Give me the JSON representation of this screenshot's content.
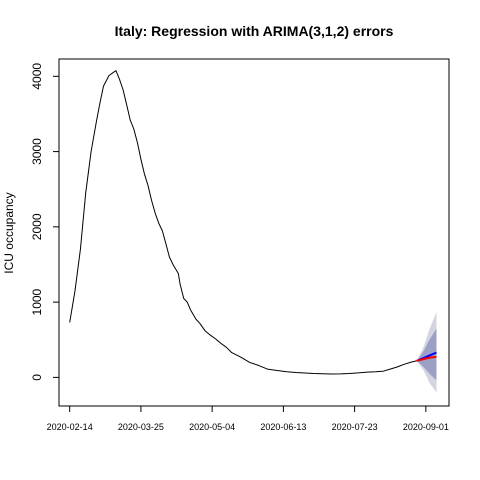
{
  "chart_data": {
    "type": "line",
    "title": "Italy: Regression with ARIMA(3,1,2) errors",
    "xlabel": "",
    "ylabel": "ICU occupancy",
    "x_axis_type": "date",
    "xlim": [
      "2020-02-08",
      "2020-09-14"
    ],
    "ylim": [
      -380,
      4230
    ],
    "x_ticks": [
      "2020-02-14",
      "2020-03-25",
      "2020-05-04",
      "2020-06-13",
      "2020-07-23",
      "2020-09-01"
    ],
    "y_ticks": [
      0,
      1000,
      2000,
      3000,
      4000
    ],
    "y_tick_labels": [
      "0",
      "1000",
      "2000",
      "3000",
      "4000"
    ],
    "grid": false,
    "legend": "none",
    "series": [
      {
        "role": "observed",
        "color": "#000000",
        "points": [
          [
            "2020-02-14",
            730
          ],
          [
            "2020-02-17",
            1150
          ],
          [
            "2020-02-20",
            1700
          ],
          [
            "2020-02-23",
            2450
          ],
          [
            "2020-02-26",
            3000
          ],
          [
            "2020-02-29",
            3400
          ],
          [
            "2020-03-02",
            3650
          ],
          [
            "2020-03-04",
            3870
          ],
          [
            "2020-03-07",
            4010
          ],
          [
            "2020-03-10",
            4060
          ],
          [
            "2020-03-11",
            4075
          ],
          [
            "2020-03-13",
            3960
          ],
          [
            "2020-03-15",
            3820
          ],
          [
            "2020-03-17",
            3620
          ],
          [
            "2020-03-19",
            3420
          ],
          [
            "2020-03-21",
            3300
          ],
          [
            "2020-03-23",
            3120
          ],
          [
            "2020-03-25",
            2900
          ],
          [
            "2020-03-27",
            2700
          ],
          [
            "2020-03-29",
            2550
          ],
          [
            "2020-03-31",
            2350
          ],
          [
            "2020-04-02",
            2180
          ],
          [
            "2020-04-04",
            2050
          ],
          [
            "2020-04-06",
            1950
          ],
          [
            "2020-04-08",
            1780
          ],
          [
            "2020-04-10",
            1600
          ],
          [
            "2020-04-12",
            1500
          ],
          [
            "2020-04-15",
            1380
          ],
          [
            "2020-04-16",
            1240
          ],
          [
            "2020-04-18",
            1050
          ],
          [
            "2020-04-20",
            1000
          ],
          [
            "2020-04-22",
            890
          ],
          [
            "2020-04-25",
            770
          ],
          [
            "2020-04-27",
            720
          ],
          [
            "2020-04-30",
            620
          ],
          [
            "2020-05-03",
            560
          ],
          [
            "2020-05-06",
            510
          ],
          [
            "2020-05-09",
            450
          ],
          [
            "2020-05-12",
            400
          ],
          [
            "2020-05-15",
            330
          ],
          [
            "2020-05-20",
            270
          ],
          [
            "2020-05-25",
            200
          ],
          [
            "2020-05-30",
            160
          ],
          [
            "2020-06-04",
            110
          ],
          [
            "2020-06-10",
            90
          ],
          [
            "2020-06-15",
            75
          ],
          [
            "2020-06-20",
            65
          ],
          [
            "2020-06-25",
            58
          ],
          [
            "2020-06-30",
            52
          ],
          [
            "2020-07-05",
            48
          ],
          [
            "2020-07-10",
            45
          ],
          [
            "2020-07-15",
            46
          ],
          [
            "2020-07-20",
            52
          ],
          [
            "2020-07-25",
            60
          ],
          [
            "2020-07-30",
            70
          ],
          [
            "2020-08-04",
            75
          ],
          [
            "2020-08-08",
            82
          ],
          [
            "2020-08-12",
            110
          ],
          [
            "2020-08-16",
            140
          ],
          [
            "2020-08-20",
            175
          ],
          [
            "2020-08-24",
            205
          ],
          [
            "2020-08-27",
            220
          ]
        ]
      },
      {
        "role": "forecast",
        "color": "#0000ff",
        "points": [
          [
            "2020-08-27",
            220
          ],
          [
            "2020-08-29",
            240
          ],
          [
            "2020-08-31",
            260
          ],
          [
            "2020-09-02",
            280
          ],
          [
            "2020-09-04",
            300
          ],
          [
            "2020-09-06",
            320
          ],
          [
            "2020-09-07",
            330
          ]
        ]
      },
      {
        "role": "forecast-alt",
        "color": "#ff0000",
        "points": [
          [
            "2020-08-27",
            220
          ],
          [
            "2020-08-31",
            245
          ],
          [
            "2020-09-03",
            262
          ],
          [
            "2020-09-07",
            275
          ]
        ]
      }
    ],
    "intervals": [
      {
        "level": "95%",
        "color": "#d5d5df",
        "x": [
          "2020-08-27",
          "2020-08-31",
          "2020-09-03",
          "2020-09-07"
        ],
        "lower": [
          220,
          80,
          -70,
          -200
        ],
        "upper": [
          220,
          420,
          640,
          870
        ]
      },
      {
        "level": "80%",
        "color": "#9ca0c4",
        "x": [
          "2020-08-27",
          "2020-08-31",
          "2020-09-03",
          "2020-09-07"
        ],
        "lower": [
          220,
          130,
          50,
          -40
        ],
        "upper": [
          220,
          360,
          500,
          650
        ]
      }
    ]
  }
}
